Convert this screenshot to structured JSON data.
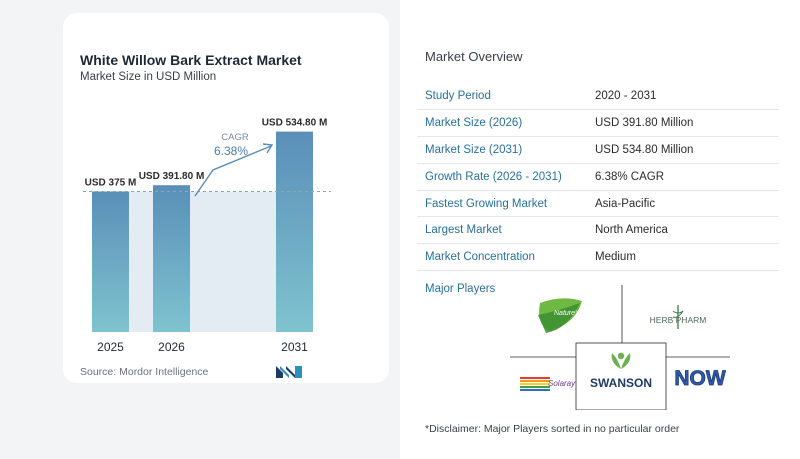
{
  "title": "White Willow Bark Extract Market",
  "subtitle": "Market Size in USD Million",
  "source": "Source:  Mordor Intelligence",
  "chart_data": {
    "type": "bar",
    "categories": [
      "2025",
      "2026",
      "2031"
    ],
    "values": [
      375,
      391.8,
      534.8
    ],
    "data_labels": [
      "USD 375 M",
      "USD 391.80 M",
      "USD 534.80 M"
    ],
    "annotation": {
      "label": "CAGR",
      "value": "6.38%"
    },
    "colors": {
      "bar_top": "#5a8fb8",
      "bar_bottom": "#7fc3cf",
      "shade": "#e3ecf3",
      "arrow": "#5b8db3",
      "cagr_label": "#7a8c9a",
      "cagr_value": "#4a7da6"
    }
  },
  "overview": {
    "title": "Market Overview",
    "rows": [
      {
        "label": "Study Period",
        "value": "2020 - 2031"
      },
      {
        "label": "Market Size (2026)",
        "value": "USD 391.80 Million"
      },
      {
        "label": "Market Size (2031)",
        "value": "USD 534.80 Million"
      },
      {
        "label": "Growth Rate (2026 - 2031)",
        "value": "6.38% CAGR"
      },
      {
        "label": "Fastest Growing Market",
        "value": "Asia-Pacific"
      },
      {
        "label": "Largest Market",
        "value": "North America"
      },
      {
        "label": "Market Concentration",
        "value": "Medium"
      }
    ]
  },
  "players": {
    "title": "Major Players",
    "logos": [
      {
        "name": "nature's way",
        "text": "Nature's way"
      },
      {
        "name": "herb pharm",
        "text": "HERB PHARM"
      },
      {
        "name": "solaray",
        "text": "Solaray"
      },
      {
        "name": "swanson",
        "text": "SWANSON"
      },
      {
        "name": "now",
        "text": "NOW"
      }
    ]
  },
  "disclaimer": "*Disclaimer: Major Players sorted in no particular order"
}
